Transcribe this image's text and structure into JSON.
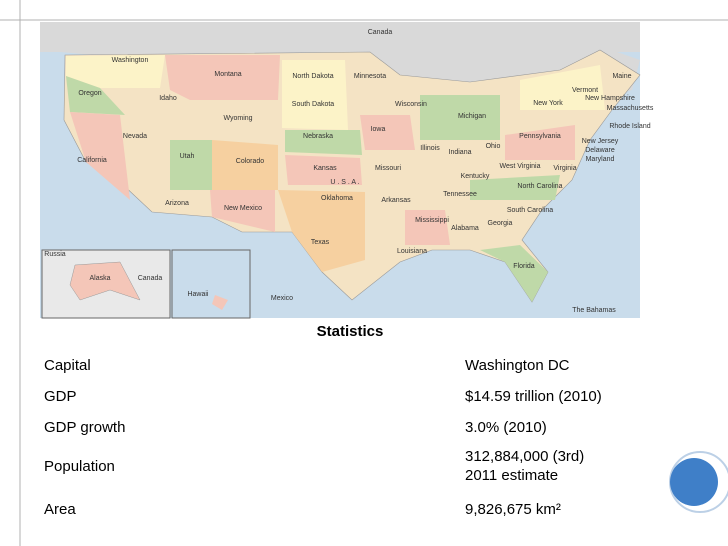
{
  "map": {
    "labels": [
      "Canada",
      "Washington",
      "Oregon",
      "Idaho",
      "Montana",
      "North Dakota",
      "South Dakota",
      "Minnesota",
      "Wisconsin",
      "Michigan",
      "New York",
      "Maine",
      "Vermont",
      "New Hampshire",
      "Massachusetts",
      "Rhode Island",
      "Pennsylvania",
      "New Jersey",
      "Delaware",
      "Maryland",
      "Ohio",
      "Indiana",
      "Illinois",
      "Iowa",
      "Nebraska",
      "Wyoming",
      "Nevada",
      "Utah",
      "Colorado",
      "California",
      "Kansas",
      "Missouri",
      "Kentucky",
      "West Virginia",
      "Virginia",
      "North Carolina",
      "South Carolina",
      "Tennessee",
      "Oklahoma",
      "Arkansas",
      "Arizona",
      "New Mexico",
      "Texas",
      "Louisiana",
      "Mississippi",
      "Alabama",
      "Georgia",
      "Florida",
      "U . S . A .",
      "Mexico",
      "Russia",
      "Alaska",
      "Canada",
      "Hawaii",
      "The Bahamas"
    ]
  },
  "table": {
    "title": "Statistics",
    "rows": [
      [
        "Capital",
        "Washington DC"
      ],
      [
        "GDP",
        "$14.59 trillion (2010)"
      ],
      [
        "GDP growth",
        "3.0% (2010)"
      ],
      [
        "Population",
        "312,884,000 (3rd)\n2011 estimate"
      ],
      [
        "Area",
        "9,826,675 km²"
      ]
    ]
  }
}
